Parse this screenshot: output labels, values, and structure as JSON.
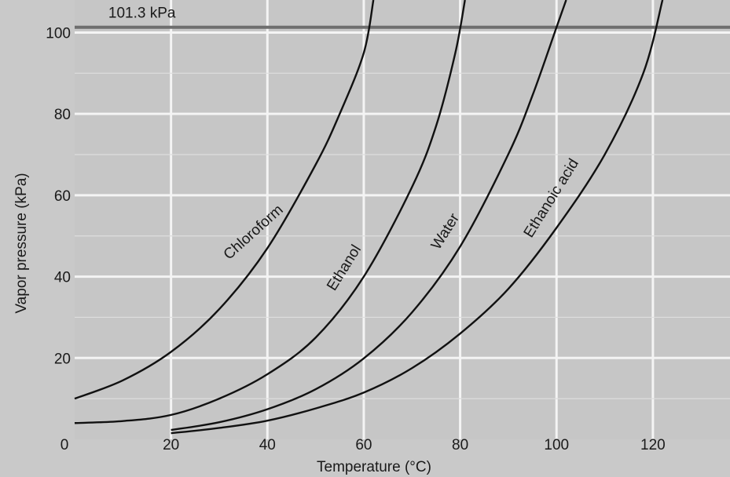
{
  "chart_data": {
    "type": "line",
    "title": "",
    "xlabel": "Temperature (°C)",
    "ylabel": "Vapor pressure (kPa)",
    "xlim": [
      0,
      136
    ],
    "ylim": [
      0,
      108
    ],
    "x_ticks": [
      0,
      20,
      40,
      60,
      80,
      100,
      120
    ],
    "x_tick_labels": [
      "0",
      "20",
      "40",
      "60",
      "80",
      "100",
      "120"
    ],
    "y_ticks": [
      0,
      20,
      40,
      60,
      80,
      100
    ],
    "y_tick_labels": [
      "",
      "20",
      "40",
      "60",
      "80",
      "100"
    ],
    "grid": true,
    "reference_line": {
      "y": 101.3,
      "label": "101.3 kPa"
    },
    "series": [
      {
        "name": "Chloroform",
        "x": [
          0,
          10,
          20,
          30,
          40,
          50,
          55,
          60,
          62
        ],
        "y": [
          10,
          14.5,
          21.5,
          32,
          47,
          67.5,
          80,
          95,
          108
        ],
        "label_at": 40,
        "label_angle": -42
      },
      {
        "name": "Ethanol",
        "x": [
          0,
          10,
          20,
          30,
          40,
          50,
          60,
          70,
          75,
          79,
          81
        ],
        "y": [
          4,
          4.5,
          6,
          10,
          16,
          25,
          40,
          62,
          77,
          95,
          108
        ],
        "label_at": 59,
        "label_angle": -58
      },
      {
        "name": "Water",
        "x": [
          20,
          30,
          40,
          50,
          60,
          70,
          80,
          90,
          95,
          100,
          102
        ],
        "y": [
          2.3,
          4.2,
          7.4,
          12.3,
          19.9,
          31.2,
          47.4,
          70.1,
          84.5,
          101.3,
          108
        ],
        "label_at": 80,
        "label_angle": -58
      },
      {
        "name": "Ethanoic acid",
        "x": [
          20,
          30,
          40,
          50,
          60,
          70,
          80,
          90,
          100,
          110,
          118,
          122
        ],
        "y": [
          1.5,
          2.8,
          4.6,
          7.6,
          11.5,
          17.5,
          26,
          37,
          52,
          70,
          90,
          108
        ],
        "label_at": 102,
        "label_angle": -58
      }
    ]
  }
}
